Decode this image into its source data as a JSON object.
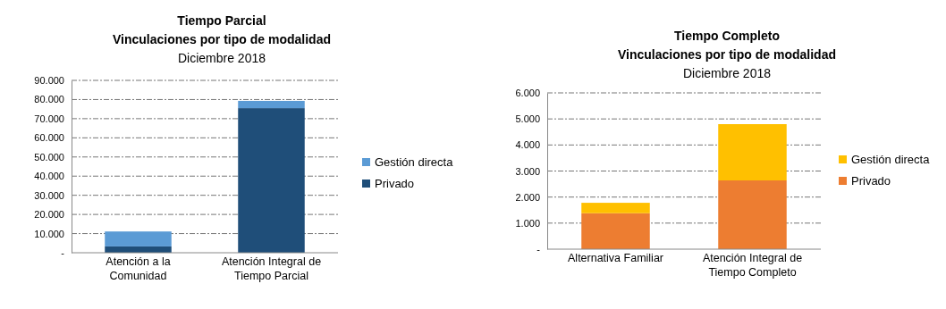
{
  "chart_data": [
    {
      "type": "bar",
      "title": "Tiempo Parcial\nVinculaciones por tipo de modalidad",
      "subtitle": "Diciembre 2018",
      "categories": [
        "Atención a la Comunidad",
        "Atención Integral de Tiempo Parcial"
      ],
      "stacked": true,
      "series": [
        {
          "name": "Privado",
          "color": "#1f4e79",
          "values": [
            3300,
            75500
          ]
        },
        {
          "name": "Gestión directa",
          "color": "#5b9bd5",
          "values": [
            7800,
            3800
          ]
        }
      ],
      "ylim": [
        0,
        90000
      ],
      "yticks": [
        {
          "value": 0,
          "label": "-"
        },
        {
          "value": 10000,
          "label": "10.000"
        },
        {
          "value": 20000,
          "label": "20.000"
        },
        {
          "value": 30000,
          "label": "30.000"
        },
        {
          "value": 40000,
          "label": "40.000"
        },
        {
          "value": 50000,
          "label": "50.000"
        },
        {
          "value": 60000,
          "label": "60.000"
        },
        {
          "value": 70000,
          "label": "70.000"
        },
        {
          "value": 80000,
          "label": "80.000"
        },
        {
          "value": 90000,
          "label": "90.000"
        }
      ],
      "grid": "y",
      "legend": "right"
    },
    {
      "type": "bar",
      "title": "Tiempo Completo\nVinculaciones por tipo de modalidad",
      "subtitle": "Diciembre 2018",
      "categories": [
        "Alternativa Familiar",
        "Atención Integral de Tiempo Completo"
      ],
      "stacked": true,
      "series": [
        {
          "name": "Privado",
          "color": "#ed7d31",
          "values": [
            1380,
            2640
          ]
        },
        {
          "name": "Gestión directa",
          "color": "#ffc000",
          "values": [
            400,
            2160
          ]
        }
      ],
      "ylim": [
        0,
        6000
      ],
      "yticks": [
        {
          "value": 0,
          "label": "-"
        },
        {
          "value": 1000,
          "label": "1.000"
        },
        {
          "value": 2000,
          "label": "2.000"
        },
        {
          "value": 3000,
          "label": "3.000"
        },
        {
          "value": 4000,
          "label": "4.000"
        },
        {
          "value": 5000,
          "label": "5.000"
        },
        {
          "value": 6000,
          "label": "6.000"
        }
      ],
      "grid": "y",
      "legend": "right"
    }
  ]
}
